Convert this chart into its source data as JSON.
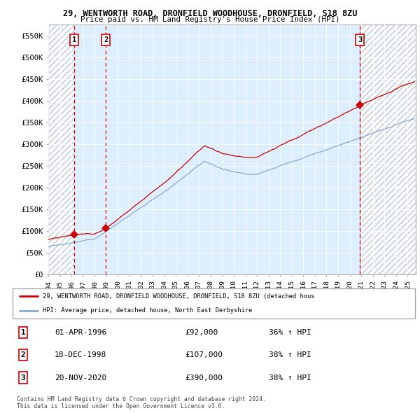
{
  "title1": "29, WENTWORTH ROAD, DRONFIELD WOODHOUSE, DRONFIELD, S18 8ZU",
  "title2": "Price paid vs. HM Land Registry's House Price Index (HPI)",
  "ylabel_ticks": [
    "£0",
    "£50K",
    "£100K",
    "£150K",
    "£200K",
    "£250K",
    "£300K",
    "£350K",
    "£400K",
    "£450K",
    "£500K",
    "£550K"
  ],
  "ytick_vals": [
    0,
    50000,
    100000,
    150000,
    200000,
    250000,
    300000,
    350000,
    400000,
    450000,
    500000,
    550000
  ],
  "xmin": 1994.0,
  "xmax": 2025.7,
  "ymin": 0,
  "ymax": 575000,
  "sale_dates": [
    1996.25,
    1998.96,
    2020.89
  ],
  "sale_prices": [
    92000,
    107000,
    390000
  ],
  "sale_labels": [
    "1",
    "2",
    "3"
  ],
  "red_line_color": "#cc0000",
  "blue_line_color": "#88aacc",
  "sale_dot_color": "#cc0000",
  "vline_color": "#cc0000",
  "plot_bg_color": "#ddeeff",
  "shade_color": "#ddeeff",
  "legend_line1": "29, WENTWORTH ROAD, DRONFIELD WOODHOUSE, DRONFIELD, S18 8ZU (detached hous",
  "legend_line2": "HPI: Average price, detached house, North East Derbyshire",
  "table_rows": [
    [
      "1",
      "01-APR-1996",
      "£92,000",
      "36% ↑ HPI"
    ],
    [
      "2",
      "18-DEC-1998",
      "£107,000",
      "38% ↑ HPI"
    ],
    [
      "3",
      "20-NOV-2020",
      "£390,000",
      "38% ↑ HPI"
    ]
  ],
  "footer": "Contains HM Land Registry data © Crown copyright and database right 2024.\nThis data is licensed under the Open Government Licence v3.0."
}
